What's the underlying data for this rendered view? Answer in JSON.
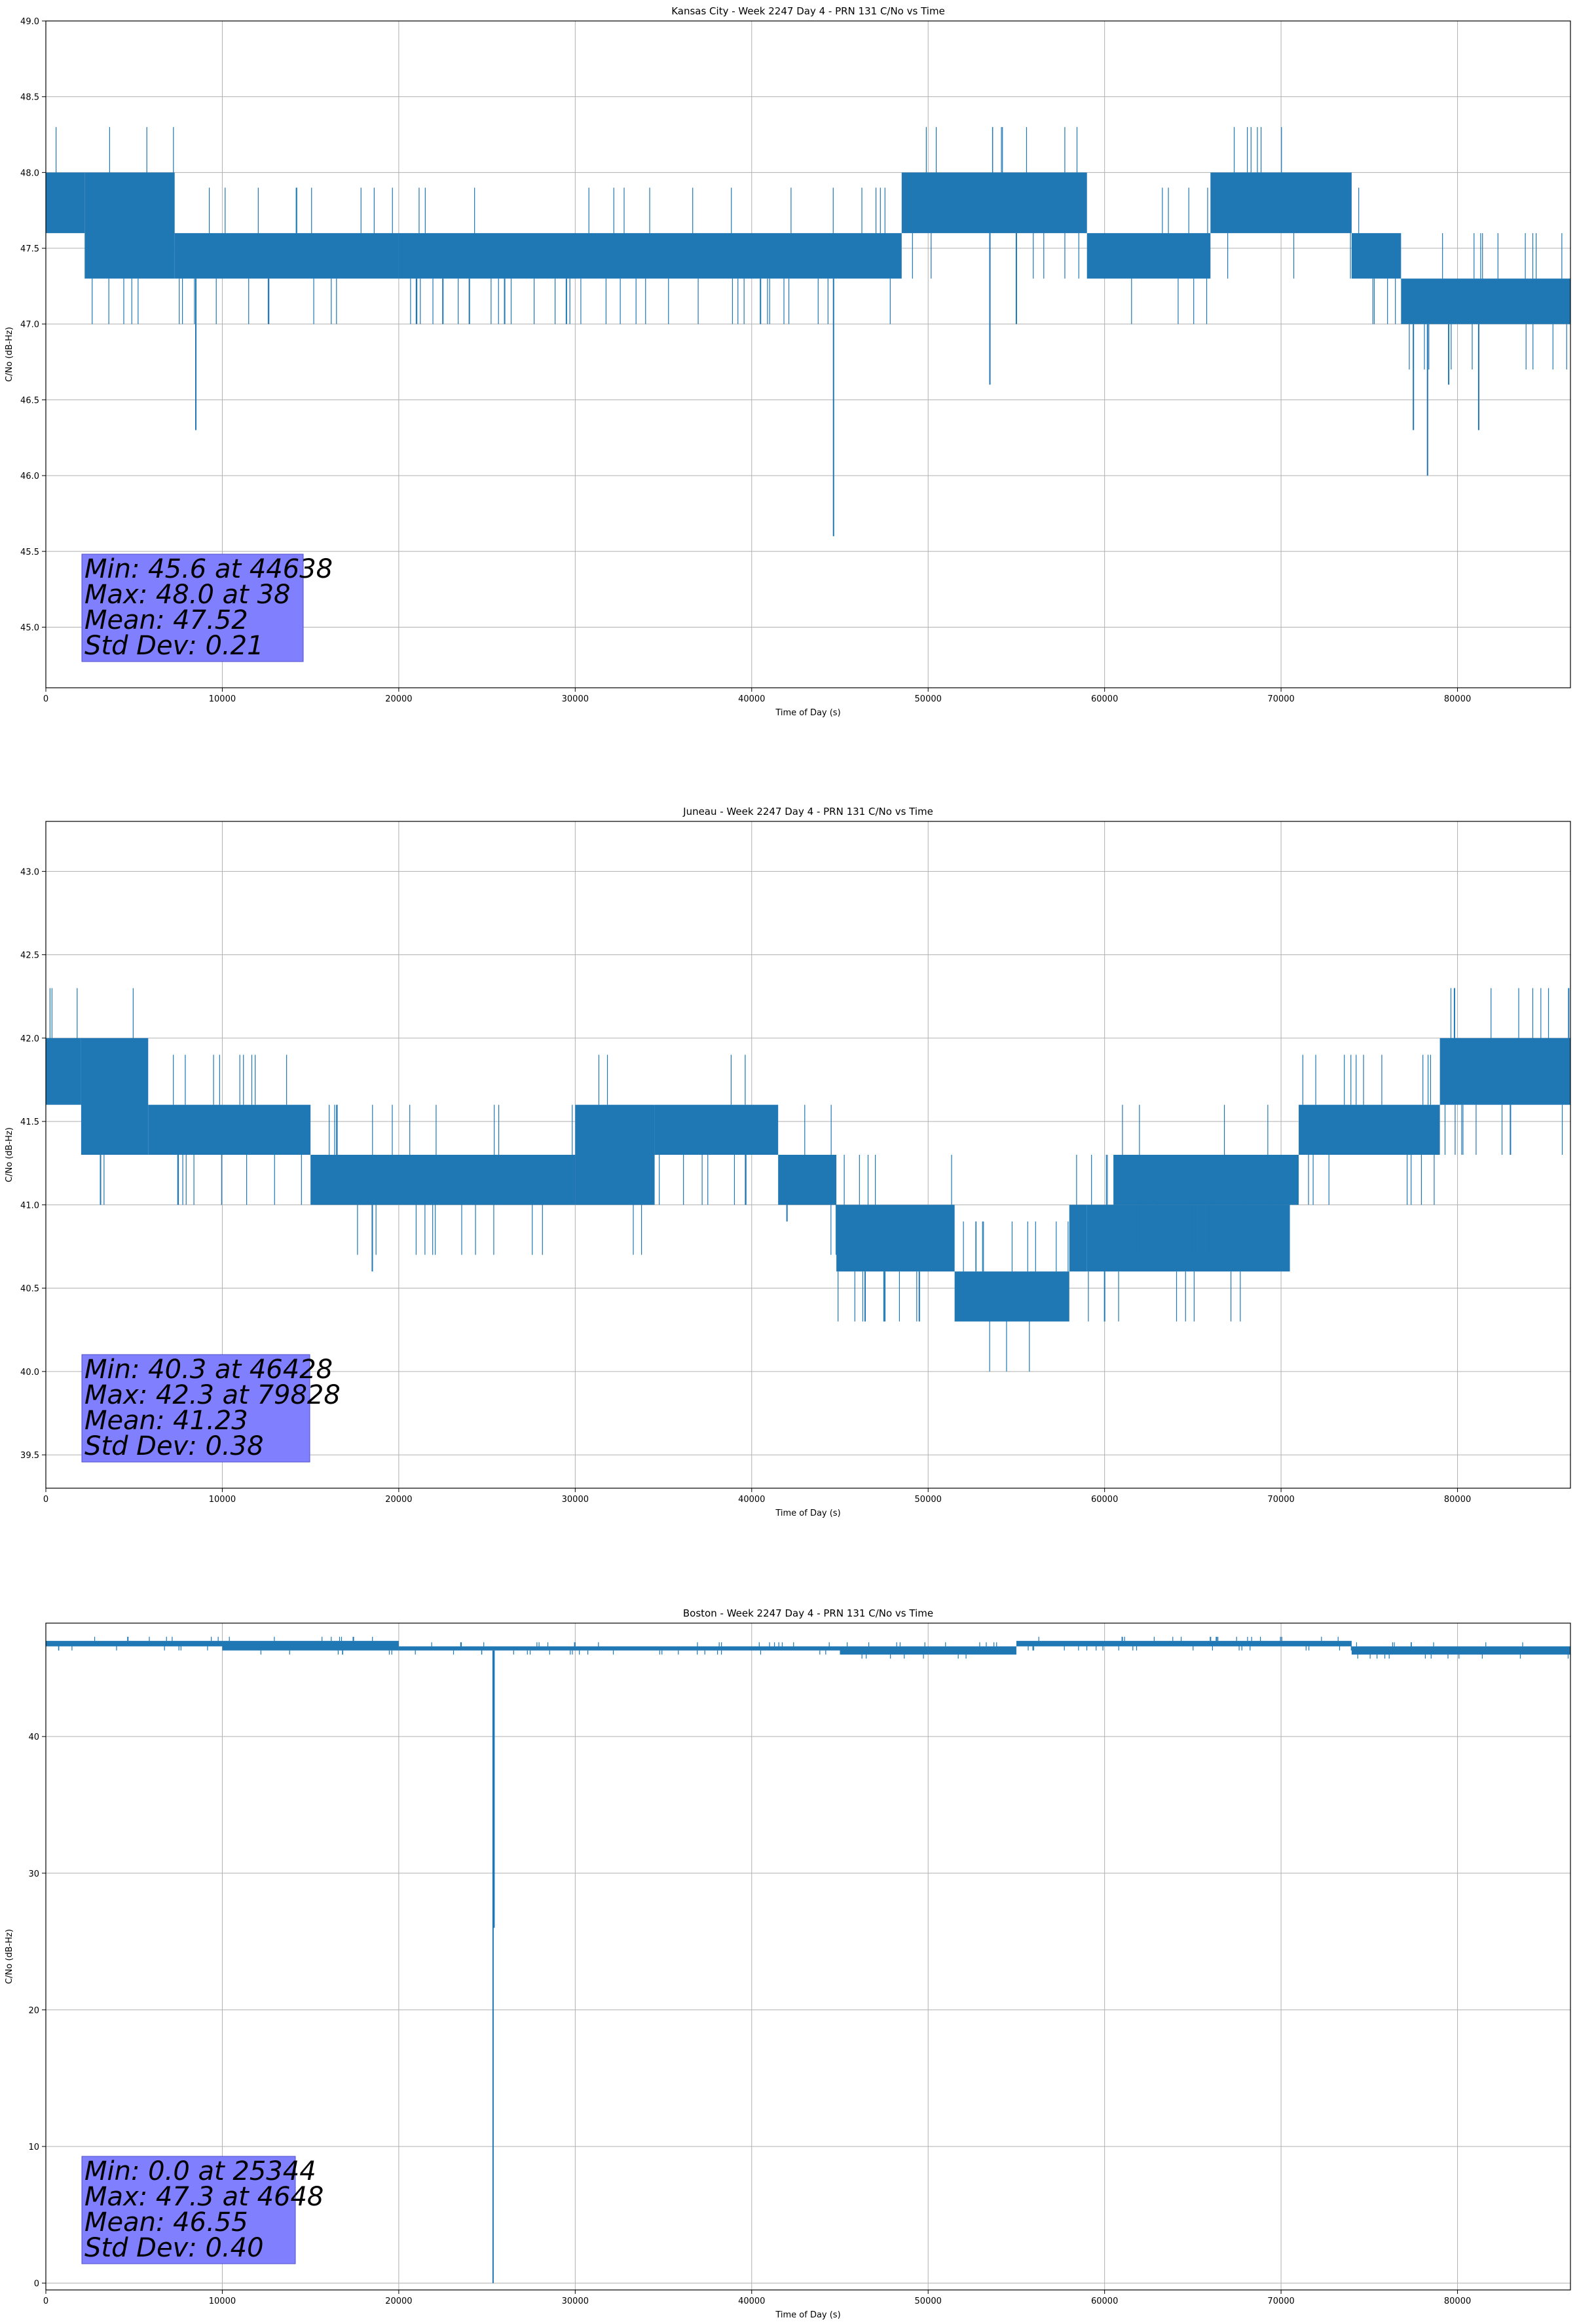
{
  "colors": {
    "series": "#1f77b4",
    "grid": "#b0b0b0",
    "stats_box": "#8080ff"
  },
  "chart_data": [
    {
      "type": "line",
      "title": "Kansas City - Week 2247 Day 4 - PRN 131 C/No vs Time",
      "xlabel": "Time of Day (s)",
      "ylabel": "C/No (dB-Hz)",
      "xlim": [
        0,
        86400
      ],
      "ylim": [
        44.6,
        49.0
      ],
      "xticks": [
        0,
        10000,
        20000,
        30000,
        40000,
        50000,
        60000,
        70000,
        80000
      ],
      "yticks": [
        45.0,
        45.5,
        46.0,
        46.5,
        47.0,
        47.5,
        48.0,
        48.5,
        49.0
      ],
      "ytick_decimals": 1,
      "grid": true,
      "stats": [
        "Min: 45.6 at 44638",
        "Max: 48.0 at 38",
        "Mean: 47.52",
        "Std Dev: 0.21"
      ],
      "band_segments": [
        {
          "x0": 0,
          "x1": 2200,
          "lo": 47.6,
          "hi": 48.0
        },
        {
          "x0": 2200,
          "x1": 7300,
          "lo": 47.3,
          "hi": 48.0
        },
        {
          "x0": 7300,
          "x1": 20000,
          "lo": 47.3,
          "hi": 47.6
        },
        {
          "x0": 20000,
          "x1": 48500,
          "lo": 47.3,
          "hi": 47.6
        },
        {
          "x0": 48500,
          "x1": 59000,
          "lo": 47.6,
          "hi": 48.0
        },
        {
          "x0": 59000,
          "x1": 66000,
          "lo": 47.3,
          "hi": 47.6
        },
        {
          "x0": 66000,
          "x1": 74000,
          "lo": 47.6,
          "hi": 48.0
        },
        {
          "x0": 74000,
          "x1": 76800,
          "lo": 47.3,
          "hi": 47.6
        },
        {
          "x0": 76800,
          "x1": 86400,
          "lo": 47.0,
          "hi": 47.3
        }
      ],
      "spikes": [
        {
          "x": 8500,
          "y": 46.3
        },
        {
          "x": 21000,
          "y": 47.0
        },
        {
          "x": 22500,
          "y": 47.0
        },
        {
          "x": 24000,
          "y": 47.0
        },
        {
          "x": 26000,
          "y": 47.0
        },
        {
          "x": 29500,
          "y": 47.0
        },
        {
          "x": 40500,
          "y": 47.0
        },
        {
          "x": 44638,
          "y": 45.6
        },
        {
          "x": 53500,
          "y": 46.6
        },
        {
          "x": 55000,
          "y": 47.0
        },
        {
          "x": 77500,
          "y": 46.3
        },
        {
          "x": 78300,
          "y": 46.0
        },
        {
          "x": 79500,
          "y": 46.6
        },
        {
          "x": 81200,
          "y": 46.3
        }
      ]
    },
    {
      "type": "line",
      "title": "Juneau - Week 2247 Day 4 - PRN 131 C/No vs Time",
      "xlabel": "Time of Day (s)",
      "ylabel": "C/No (dB-Hz)",
      "xlim": [
        0,
        86400
      ],
      "ylim": [
        39.3,
        43.3
      ],
      "xticks": [
        0,
        10000,
        20000,
        30000,
        40000,
        50000,
        60000,
        70000,
        80000
      ],
      "yticks": [
        39.5,
        40.0,
        40.5,
        41.0,
        41.5,
        42.0,
        42.5,
        43.0
      ],
      "ytick_decimals": 1,
      "grid": true,
      "stats": [
        "Min: 40.3 at 46428",
        "Max: 42.3 at 79828",
        "Mean: 41.23",
        "Std Dev: 0.38"
      ],
      "band_segments": [
        {
          "x0": 0,
          "x1": 2000,
          "lo": 41.6,
          "hi": 42.0
        },
        {
          "x0": 2000,
          "x1": 5800,
          "lo": 41.3,
          "hi": 42.0
        },
        {
          "x0": 5800,
          "x1": 15000,
          "lo": 41.3,
          "hi": 41.6
        },
        {
          "x0": 15000,
          "x1": 30000,
          "lo": 41.0,
          "hi": 41.3
        },
        {
          "x0": 30000,
          "x1": 34500,
          "lo": 41.0,
          "hi": 41.6
        },
        {
          "x0": 34500,
          "x1": 41500,
          "lo": 41.3,
          "hi": 41.6
        },
        {
          "x0": 41500,
          "x1": 44800,
          "lo": 41.0,
          "hi": 41.3
        },
        {
          "x0": 44800,
          "x1": 51500,
          "lo": 40.6,
          "hi": 41.0
        },
        {
          "x0": 51500,
          "x1": 58000,
          "lo": 40.3,
          "hi": 40.6
        },
        {
          "x0": 58000,
          "x1": 59000,
          "lo": 40.6,
          "hi": 41.0
        },
        {
          "x0": 59000,
          "x1": 70500,
          "lo": 40.6,
          "hi": 41.0
        },
        {
          "x0": 60500,
          "x1": 71000,
          "lo": 41.0,
          "hi": 41.3
        },
        {
          "x0": 71000,
          "x1": 79000,
          "lo": 41.3,
          "hi": 41.6
        },
        {
          "x0": 79000,
          "x1": 86400,
          "lo": 41.6,
          "hi": 42.0
        }
      ],
      "spikes": [
        {
          "x": 3100,
          "y": 41.0
        },
        {
          "x": 7500,
          "y": 41.0
        },
        {
          "x": 18500,
          "y": 40.6
        },
        {
          "x": 42000,
          "y": 40.9
        },
        {
          "x": 46428,
          "y": 40.3
        },
        {
          "x": 47500,
          "y": 40.3
        },
        {
          "x": 49500,
          "y": 40.3
        },
        {
          "x": 60000,
          "y": 40.3
        },
        {
          "x": 79828,
          "y": 42.3
        },
        {
          "x": 83000,
          "y": 41.3
        },
        {
          "x": 86300,
          "y": 42.3
        }
      ]
    },
    {
      "type": "line",
      "title": "Boston - Week 2247 Day 4 - PRN 131 C/No vs Time",
      "xlabel": "Time of Day (s)",
      "ylabel": "C/No (dB-Hz)",
      "xlim": [
        0,
        86400
      ],
      "ylim": [
        -0.5,
        48.3
      ],
      "xticks": [
        0,
        10000,
        20000,
        30000,
        40000,
        50000,
        60000,
        70000,
        80000
      ],
      "yticks": [
        0,
        10,
        20,
        30,
        40
      ],
      "ytick_decimals": 0,
      "grid": true,
      "stats": [
        "Min: 0.0 at 25344",
        "Max: 47.3 at 4648",
        "Mean: 46.55",
        "Std Dev: 0.40"
      ],
      "band_segments": [
        {
          "x0": 0,
          "x1": 10000,
          "lo": 46.6,
          "hi": 47.0
        },
        {
          "x0": 10000,
          "x1": 20000,
          "lo": 46.3,
          "hi": 47.0
        },
        {
          "x0": 20000,
          "x1": 45000,
          "lo": 46.3,
          "hi": 46.6
        },
        {
          "x0": 45000,
          "x1": 55000,
          "lo": 46.0,
          "hi": 46.6
        },
        {
          "x0": 55000,
          "x1": 74000,
          "lo": 46.6,
          "hi": 47.0
        },
        {
          "x0": 74000,
          "x1": 86400,
          "lo": 46.0,
          "hi": 46.6
        }
      ],
      "spikes": [
        {
          "x": 25344,
          "y": 0.0
        },
        {
          "x": 25400,
          "y": 26.0
        },
        {
          "x": 4648,
          "y": 47.3
        },
        {
          "x": 61000,
          "y": 47.3
        },
        {
          "x": 66000,
          "y": 47.3
        }
      ]
    }
  ]
}
